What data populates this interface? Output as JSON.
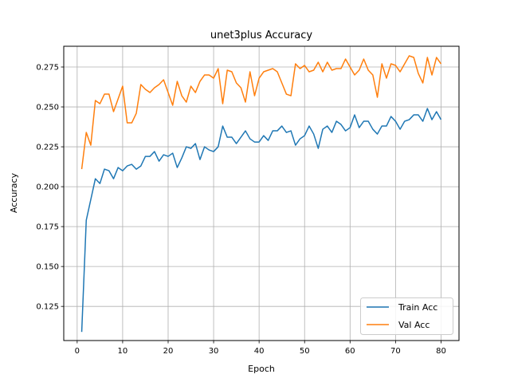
{
  "chart_data": {
    "type": "line",
    "title": "unet3plus Accuracy",
    "xlabel": "Epoch",
    "ylabel": "Accuracy",
    "xlim": [
      -2.95,
      83.95
    ],
    "ylim": [
      0.1036,
      0.288
    ],
    "xticks": [
      0,
      10,
      20,
      30,
      40,
      50,
      60,
      70,
      80
    ],
    "yticks": [
      0.125,
      0.15,
      0.175,
      0.2,
      0.225,
      0.25,
      0.275
    ],
    "ytick_labels": [
      "0.125",
      "0.150",
      "0.175",
      "0.200",
      "0.225",
      "0.250",
      "0.275"
    ],
    "grid": true,
    "legend_position": "bottom-right",
    "x": [
      1,
      2,
      3,
      4,
      5,
      6,
      7,
      8,
      9,
      10,
      11,
      12,
      13,
      14,
      15,
      16,
      17,
      18,
      19,
      20,
      21,
      22,
      23,
      24,
      25,
      26,
      27,
      28,
      29,
      30,
      31,
      32,
      33,
      34,
      35,
      36,
      37,
      38,
      39,
      40,
      41,
      42,
      43,
      44,
      45,
      46,
      47,
      48,
      49,
      50,
      51,
      52,
      53,
      54,
      55,
      56,
      57,
      58,
      59,
      60,
      61,
      62,
      63,
      64,
      65,
      66,
      67,
      68,
      69,
      70,
      71,
      72,
      73,
      74,
      75,
      76,
      77,
      78,
      79,
      80
    ],
    "series": [
      {
        "name": "Train Acc",
        "color": "#1f77b4",
        "values": [
          0.109,
          0.179,
          0.192,
          0.205,
          0.202,
          0.211,
          0.21,
          0.205,
          0.212,
          0.21,
          0.213,
          0.214,
          0.211,
          0.213,
          0.219,
          0.219,
          0.222,
          0.216,
          0.22,
          0.219,
          0.221,
          0.212,
          0.218,
          0.225,
          0.224,
          0.227,
          0.217,
          0.225,
          0.223,
          0.222,
          0.225,
          0.238,
          0.231,
          0.231,
          0.227,
          0.231,
          0.235,
          0.23,
          0.228,
          0.228,
          0.232,
          0.229,
          0.235,
          0.235,
          0.238,
          0.234,
          0.235,
          0.226,
          0.23,
          0.232,
          0.238,
          0.233,
          0.224,
          0.236,
          0.238,
          0.234,
          0.241,
          0.239,
          0.235,
          0.237,
          0.245,
          0.237,
          0.241,
          0.241,
          0.236,
          0.233,
          0.238,
          0.238,
          0.244,
          0.241,
          0.236,
          0.241,
          0.242,
          0.245,
          0.245,
          0.241,
          0.249,
          0.242,
          0.247,
          0.242
        ]
      },
      {
        "name": "Val Acc",
        "color": "#ff7f0e",
        "values": [
          0.211,
          0.234,
          0.226,
          0.254,
          0.252,
          0.258,
          0.258,
          0.247,
          0.255,
          0.263,
          0.24,
          0.24,
          0.246,
          0.264,
          0.261,
          0.259,
          0.262,
          0.264,
          0.267,
          0.259,
          0.251,
          0.266,
          0.257,
          0.253,
          0.263,
          0.259,
          0.266,
          0.27,
          0.27,
          0.268,
          0.274,
          0.252,
          0.273,
          0.272,
          0.265,
          0.262,
          0.253,
          0.272,
          0.257,
          0.268,
          0.272,
          0.273,
          0.274,
          0.272,
          0.265,
          0.258,
          0.257,
          0.277,
          0.274,
          0.276,
          0.272,
          0.273,
          0.278,
          0.272,
          0.278,
          0.273,
          0.274,
          0.274,
          0.28,
          0.275,
          0.27,
          0.273,
          0.28,
          0.273,
          0.27,
          0.256,
          0.277,
          0.268,
          0.277,
          0.276,
          0.272,
          0.277,
          0.282,
          0.281,
          0.271,
          0.265,
          0.281,
          0.27,
          0.281,
          0.277
        ]
      }
    ]
  }
}
